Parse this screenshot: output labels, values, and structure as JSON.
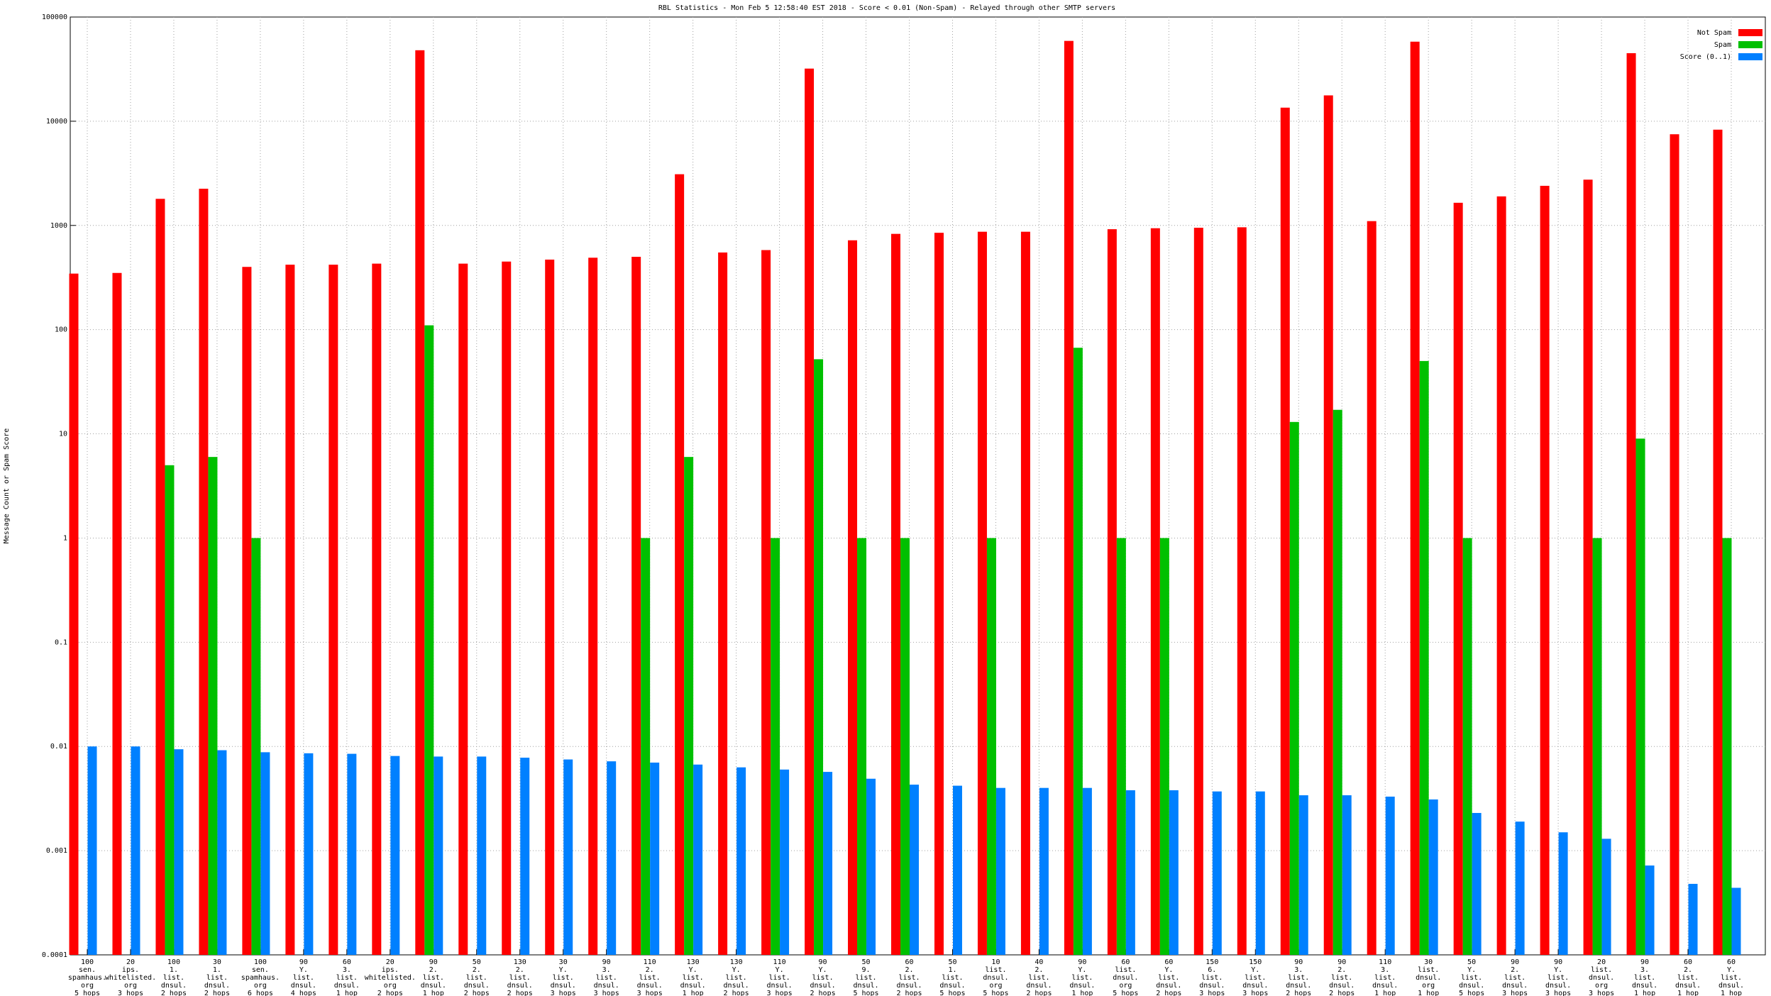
{
  "chart_data": {
    "type": "bar",
    "title": "RBL Statistics - Mon Feb  5 12:58:40 EST 2018 - Score < 0.01 (Non-Spam) - Relayed through other SMTP servers",
    "y_label": "Message Count or Spam Score",
    "log_scale": true,
    "grid": true,
    "legend": "top-right",
    "ylim": [
      0.0001,
      100000
    ],
    "yticks": [
      0.0001,
      0.001,
      0.01,
      0.1,
      1,
      10,
      100,
      1000,
      10000,
      100000
    ],
    "categories": [
      [
        "100",
        "sen.",
        "spamhaus.",
        "org",
        "5 hops"
      ],
      [
        "20",
        "ips.",
        "whitelisted.",
        "org",
        "3 hops"
      ],
      [
        "100",
        "1.",
        "list.",
        "dnsul.",
        "2 hops"
      ],
      [
        "30",
        "1.",
        "list.",
        "dnsul.",
        "2 hops"
      ],
      [
        "100",
        "sen.",
        "spamhaus.",
        "org",
        "6 hops"
      ],
      [
        "90",
        "Y.",
        "list.",
        "dnsul.",
        "4 hops"
      ],
      [
        "60",
        "3.",
        "list.",
        "dnsul.",
        "1 hop"
      ],
      [
        "20",
        "ips.",
        "whitelisted.",
        "org",
        "2 hops"
      ],
      [
        "90",
        "2.",
        "list.",
        "dnsul.",
        "1 hop"
      ],
      [
        "50",
        "2.",
        "list.",
        "dnsul.",
        "2 hops"
      ],
      [
        "130",
        "2.",
        "list.",
        "dnsul.",
        "2 hops"
      ],
      [
        "30",
        "Y.",
        "list.",
        "dnsul.",
        "3 hops"
      ],
      [
        "90",
        "3.",
        "list.",
        "dnsul.",
        "3 hops"
      ],
      [
        "110",
        "2.",
        "list.",
        "dnsul.",
        "3 hops"
      ],
      [
        "130",
        "Y.",
        "list.",
        "dnsul.",
        "1 hop"
      ],
      [
        "130",
        "Y.",
        "list.",
        "dnsul.",
        "2 hops"
      ],
      [
        "110",
        "Y.",
        "list.",
        "dnsul.",
        "3 hops"
      ],
      [
        "90",
        "Y.",
        "list.",
        "dnsul.",
        "2 hops"
      ],
      [
        "50",
        "9.",
        "list.",
        "dnsul.",
        "5 hops"
      ],
      [
        "60",
        "2.",
        "list.",
        "dnsul.",
        "2 hops"
      ],
      [
        "50",
        "1.",
        "list.",
        "dnsul.",
        "5 hops"
      ],
      [
        "10",
        "list.",
        "dnsul.",
        "org",
        "5 hops"
      ],
      [
        "40",
        "2.",
        "list.",
        "dnsul.",
        "2 hops"
      ],
      [
        "90",
        "Y.",
        "list.",
        "dnsul.",
        "1 hop"
      ],
      [
        "60",
        "list.",
        "dnsul.",
        "org",
        "5 hops"
      ],
      [
        "60",
        "Y.",
        "list.",
        "dnsul.",
        "2 hops"
      ],
      [
        "150",
        "6.",
        "list.",
        "dnsul.",
        "3 hops"
      ],
      [
        "150",
        "Y.",
        "list.",
        "dnsul.",
        "3 hops"
      ],
      [
        "90",
        "3.",
        "list.",
        "dnsul.",
        "2 hops"
      ],
      [
        "90",
        "2.",
        "list.",
        "dnsul.",
        "2 hops"
      ],
      [
        "110",
        "3.",
        "list.",
        "dnsul.",
        "1 hop"
      ],
      [
        "30",
        "list.",
        "dnsul.",
        "org",
        "1 hop"
      ],
      [
        "50",
        "Y.",
        "list.",
        "dnsul.",
        "5 hops"
      ],
      [
        "90",
        "2.",
        "list.",
        "dnsul.",
        "3 hops"
      ],
      [
        "90",
        "Y.",
        "list.",
        "dnsul.",
        "3 hops"
      ],
      [
        "20",
        "list.",
        "dnsul.",
        "org",
        "3 hops"
      ],
      [
        "90",
        "3.",
        "list.",
        "dnsul.",
        "1 hop"
      ],
      [
        "60",
        "2.",
        "list.",
        "dnsul.",
        "1 hop"
      ],
      [
        "60",
        "Y.",
        "list.",
        "dnsul.",
        "1 hop"
      ]
    ],
    "series": [
      {
        "name": "Not Spam",
        "color": "#ff0000",
        "values": [
          345,
          350,
          1800,
          2250,
          400,
          420,
          420,
          430,
          48000,
          430,
          450,
          470,
          490,
          500,
          3100,
          550,
          580,
          32000,
          720,
          830,
          850,
          870,
          870,
          59000,
          920,
          940,
          950,
          960,
          13500,
          17700,
          1100,
          58000,
          1650,
          1900,
          2400,
          2750,
          45000,
          7500,
          8300
        ]
      },
      {
        "name": "Spam",
        "color": "#00c000",
        "values": [
          null,
          null,
          5,
          6,
          1,
          null,
          null,
          null,
          110,
          null,
          null,
          null,
          null,
          1,
          6,
          null,
          1,
          52,
          1,
          1,
          null,
          1,
          null,
          67,
          1,
          1,
          null,
          null,
          13,
          17,
          null,
          50,
          1,
          null,
          null,
          1,
          9,
          null,
          1
        ]
      },
      {
        "name": "Score (0..1)",
        "color": "#0080ff",
        "values": [
          0.01,
          0.01,
          0.0094,
          0.0092,
          0.0088,
          0.0086,
          0.0085,
          0.0081,
          0.008,
          0.008,
          0.0078,
          0.0075,
          0.0072,
          0.007,
          0.0067,
          0.0063,
          0.006,
          0.0057,
          0.0049,
          0.0043,
          0.0042,
          0.004,
          0.004,
          0.004,
          0.0038,
          0.0038,
          0.0037,
          0.0037,
          0.0034,
          0.0034,
          0.0033,
          0.0031,
          0.0023,
          0.0019,
          0.0015,
          0.0013,
          0.00072,
          0.00048,
          0.00044
        ]
      }
    ]
  }
}
